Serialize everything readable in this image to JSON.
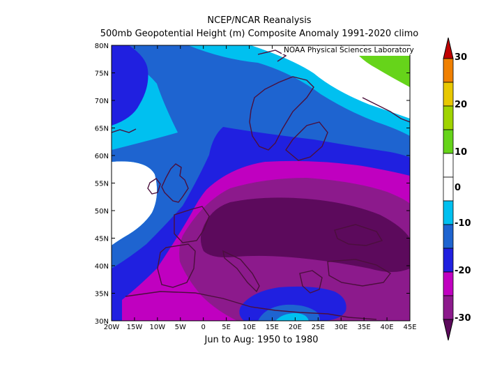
{
  "header": {
    "title": "NCEP/NCAR Reanalysis",
    "subtitle": "500mb Geopotential Height (m) Composite Anomaly 1991-2020 climo"
  },
  "credit": "NOAA Physical Sciences Laboratory",
  "footer": {
    "period": "Jun to Aug: 1950 to 1980"
  },
  "axes": {
    "lon_ticks": [
      "20W",
      "15W",
      "10W",
      "5W",
      "0",
      "5E",
      "10E",
      "15E",
      "20E",
      "25E",
      "30E",
      "35E",
      "40E",
      "45E"
    ],
    "lat_ticks": [
      "30N",
      "35N",
      "40N",
      "45N",
      "50N",
      "55N",
      "60N",
      "65N",
      "70N",
      "75N",
      "80N"
    ]
  },
  "colorbar": {
    "labels": [
      "30",
      "20",
      "10",
      "0",
      "-10",
      "-20",
      "-30"
    ],
    "levels": [
      -30,
      -25,
      -20,
      -15,
      -10,
      -5,
      5,
      10,
      15,
      20,
      25,
      30
    ],
    "colors": {
      "lt_-25": "#5c0a5c",
      "-25_-20": "#8c1a8c",
      "-20_-15": "#c000c0",
      "-15_-10": "#2020e0",
      "-10_-5": "#1e64d0",
      "-5_0": "#00c0f0",
      "neutral": "#ffffff",
      "5_10": "#66d41a",
      "10_15": "#a0d400",
      "15_20": "#e8c800",
      "20_25": "#f08000",
      "gt_25": "#c00000"
    }
  },
  "map": {
    "lon_range": [
      -20,
      45
    ],
    "lat_range": [
      30,
      80
    ],
    "variable": "500mb geopotential height anomaly",
    "units": "m"
  }
}
